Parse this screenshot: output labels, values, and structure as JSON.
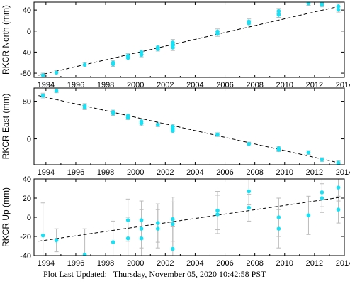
{
  "footer": {
    "label": "Plot Last Updated:",
    "timestamp": "Thursday, November 05, 2020 10:42:58 PST"
  },
  "colors": {
    "point": "#19e1f5",
    "errorbar": "#bbbbbb",
    "trend": "#000000",
    "frame": "#000000"
  },
  "chart_data": [
    {
      "type": "scatter",
      "ylabel": "RKCR North (mm)",
      "xlim": [
        1993.2,
        2014.0
      ],
      "ylim": [
        -88,
        55
      ],
      "xticks": [
        1994,
        1996,
        1998,
        2000,
        2002,
        2004,
        2006,
        2008,
        2010,
        2012,
        2014
      ],
      "yticks": [
        -80,
        -40,
        0,
        40
      ],
      "trend": [
        [
          1993.5,
          -84
        ],
        [
          2013.8,
          48
        ]
      ],
      "points": [
        {
          "x": 1993.8,
          "y": -84,
          "err": 4
        },
        {
          "x": 1994.7,
          "y": -79,
          "err": 4
        },
        {
          "x": 1996.6,
          "y": -64,
          "err": 4
        },
        {
          "x": 1998.5,
          "y": -60,
          "err": 4
        },
        {
          "x": 1998.5,
          "y": -63,
          "err": 4
        },
        {
          "x": 1999.5,
          "y": -47,
          "err": 4
        },
        {
          "x": 1999.5,
          "y": -51,
          "err": 4
        },
        {
          "x": 2000.4,
          "y": -40,
          "err": 4
        },
        {
          "x": 2000.4,
          "y": -45,
          "err": 4
        },
        {
          "x": 2001.5,
          "y": -31,
          "err": 4
        },
        {
          "x": 2001.5,
          "y": -34,
          "err": 4
        },
        {
          "x": 2002.5,
          "y": -22,
          "err": 6
        },
        {
          "x": 2002.5,
          "y": -27,
          "err": 6
        },
        {
          "x": 2002.5,
          "y": -31,
          "err": 6
        },
        {
          "x": 2005.5,
          "y": -1,
          "err": 5
        },
        {
          "x": 2005.5,
          "y": -5,
          "err": 5
        },
        {
          "x": 2007.6,
          "y": 15,
          "err": 5
        },
        {
          "x": 2007.6,
          "y": 18,
          "err": 5
        },
        {
          "x": 2009.6,
          "y": 31,
          "err": 5
        },
        {
          "x": 2009.6,
          "y": 38,
          "err": 5
        },
        {
          "x": 2011.6,
          "y": 53,
          "err": 4
        },
        {
          "x": 2012.5,
          "y": 50,
          "err": 4
        },
        {
          "x": 2012.5,
          "y": 53,
          "err": 4
        },
        {
          "x": 2013.6,
          "y": 41,
          "err": 5
        },
        {
          "x": 2013.6,
          "y": 47,
          "err": 5
        }
      ]
    },
    {
      "type": "scatter",
      "ylabel": "RKCR East (mm)",
      "xlim": [
        1993.2,
        2014.0
      ],
      "ylim": [
        -55,
        108
      ],
      "xticks": [
        1994,
        1996,
        1998,
        2000,
        2002,
        2004,
        2006,
        2008,
        2010,
        2012,
        2014
      ],
      "yticks": [
        0,
        80
      ],
      "trend": [
        [
          1993.5,
          92
        ],
        [
          2013.8,
          -52
        ]
      ],
      "points": [
        {
          "x": 1993.8,
          "y": 92,
          "err": 5
        },
        {
          "x": 1994.7,
          "y": 102,
          "err": 4
        },
        {
          "x": 1996.6,
          "y": 70,
          "err": 5
        },
        {
          "x": 1996.6,
          "y": 67,
          "err": 5
        },
        {
          "x": 1998.5,
          "y": 57,
          "err": 4
        },
        {
          "x": 1998.5,
          "y": 54,
          "err": 4
        },
        {
          "x": 1999.5,
          "y": 49,
          "err": 4
        },
        {
          "x": 1999.5,
          "y": 45,
          "err": 4
        },
        {
          "x": 2000.4,
          "y": 37,
          "err": 5
        },
        {
          "x": 2000.4,
          "y": 33,
          "err": 5
        },
        {
          "x": 2001.5,
          "y": 30,
          "err": 4
        },
        {
          "x": 2002.5,
          "y": 26,
          "err": 5
        },
        {
          "x": 2002.5,
          "y": 21,
          "err": 5
        },
        {
          "x": 2002.5,
          "y": 17,
          "err": 5
        },
        {
          "x": 2005.5,
          "y": 9,
          "err": 4
        },
        {
          "x": 2007.6,
          "y": -11,
          "err": 4
        },
        {
          "x": 2009.6,
          "y": -20,
          "err": 4
        },
        {
          "x": 2009.6,
          "y": -23,
          "err": 4
        },
        {
          "x": 2011.6,
          "y": -29,
          "err": 4
        },
        {
          "x": 2012.5,
          "y": -44,
          "err": 4
        },
        {
          "x": 2013.6,
          "y": -51,
          "err": 4
        },
        {
          "x": 2013.6,
          "y": -53,
          "err": 4
        }
      ]
    },
    {
      "type": "scatter",
      "ylabel": "RKCR Up (mm)",
      "xlim": [
        1993.2,
        2014.0
      ],
      "ylim": [
        -40,
        40
      ],
      "xticks": [
        1994,
        1996,
        1998,
        2000,
        2002,
        2004,
        2006,
        2008,
        2010,
        2012,
        2014
      ],
      "yticks": [
        -40,
        -20,
        0,
        20,
        40
      ],
      "trend": [
        [
          1993.5,
          -25
        ],
        [
          2013.8,
          21
        ]
      ],
      "points": [
        {
          "x": 1993.8,
          "y": -19,
          "err": 34
        },
        {
          "x": 1994.7,
          "y": -24,
          "err": 12
        },
        {
          "x": 1996.6,
          "y": -39,
          "err": 27
        },
        {
          "x": 1998.5,
          "y": -26,
          "err": 22
        },
        {
          "x": 1999.5,
          "y": -3,
          "err": 22
        },
        {
          "x": 1999.5,
          "y": -22,
          "err": 22
        },
        {
          "x": 2000.4,
          "y": -3,
          "err": 20
        },
        {
          "x": 2000.4,
          "y": -12,
          "err": 20
        },
        {
          "x": 2000.4,
          "y": -22,
          "err": 20
        },
        {
          "x": 2001.5,
          "y": -6,
          "err": 20
        },
        {
          "x": 2001.5,
          "y": -12,
          "err": 20
        },
        {
          "x": 2002.5,
          "y": -2,
          "err": 23
        },
        {
          "x": 2002.5,
          "y": -7,
          "err": 23
        },
        {
          "x": 2002.5,
          "y": -33,
          "err": 23
        },
        {
          "x": 2005.5,
          "y": 7,
          "err": 20
        },
        {
          "x": 2005.5,
          "y": 3,
          "err": 20
        },
        {
          "x": 2007.6,
          "y": 27,
          "err": 14
        },
        {
          "x": 2007.6,
          "y": 10,
          "err": 14
        },
        {
          "x": 2009.6,
          "y": 0,
          "err": 20
        },
        {
          "x": 2009.6,
          "y": -12,
          "err": 20
        },
        {
          "x": 2011.6,
          "y": 2,
          "err": 20
        },
        {
          "x": 2012.5,
          "y": 26,
          "err": 15
        },
        {
          "x": 2012.5,
          "y": 20,
          "err": 15
        },
        {
          "x": 2013.6,
          "y": 31,
          "err": 14
        },
        {
          "x": 2013.6,
          "y": 8,
          "err": 14
        }
      ]
    }
  ]
}
